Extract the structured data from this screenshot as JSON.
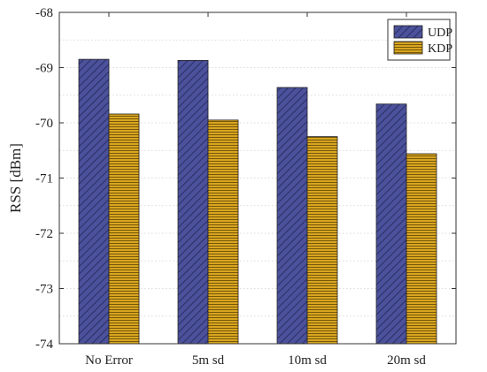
{
  "chart_data": {
    "type": "bar",
    "title": "",
    "xlabel": "",
    "ylabel": "RSS [dBm]",
    "categories": [
      "No Error",
      "5m sd",
      "10m sd",
      "20m sd"
    ],
    "series": [
      {
        "name": "UDP",
        "values": [
          -68.85,
          -68.87,
          -69.36,
          -69.66
        ],
        "color": "#4b519a",
        "pattern": "diagonal-hatch"
      },
      {
        "name": "KDP",
        "values": [
          -69.84,
          -69.95,
          -70.25,
          -70.56
        ],
        "color": "#d9a520",
        "pattern": "horizontal-hatch"
      }
    ],
    "ylim": [
      -74,
      -68
    ],
    "yticks": [
      "-68",
      "-69",
      "-70",
      "-71",
      "-72",
      "-73",
      "-74"
    ],
    "grid": true,
    "legend": "top-right"
  }
}
